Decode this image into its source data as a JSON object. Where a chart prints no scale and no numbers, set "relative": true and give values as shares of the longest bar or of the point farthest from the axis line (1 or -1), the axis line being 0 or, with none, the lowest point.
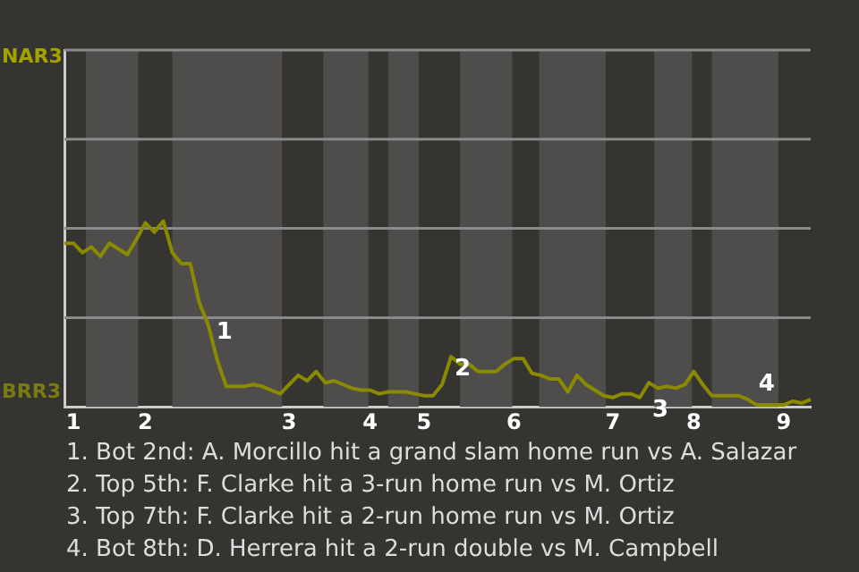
{
  "chart_data": {
    "type": "line",
    "relative": true,
    "categories": [
      null,
      "1",
      null,
      null,
      null,
      null,
      null,
      null,
      null,
      "2",
      null,
      null,
      null,
      null,
      null,
      null,
      null,
      null,
      null,
      null,
      null,
      null,
      null,
      null,
      null,
      "3",
      null,
      null,
      null,
      null,
      null,
      null,
      null,
      null,
      "4",
      null,
      null,
      null,
      null,
      null,
      "5",
      null,
      null,
      null,
      null,
      null,
      null,
      null,
      null,
      null,
      "6",
      null,
      null,
      null,
      null,
      null,
      null,
      null,
      null,
      null,
      null,
      "7",
      null,
      null,
      null,
      null,
      null,
      null,
      null,
      null,
      "8",
      null,
      null,
      null,
      null,
      null,
      null,
      null,
      null,
      null,
      "9",
      null,
      null,
      null
    ],
    "series": [
      {
        "color": "#8a8a00",
        "values": [
          0.88,
          0.88,
          0.83,
          0.86,
          0.81,
          0.88,
          0.85,
          0.82,
          0.9,
          0.99,
          0.94,
          1,
          0.83,
          0.77,
          0.77,
          0.56,
          0.44,
          0.25,
          0.11,
          0.11,
          0.11,
          0.12,
          0.11,
          0.09,
          0.07,
          0.12,
          0.17,
          0.14,
          0.19,
          0.13,
          0.14,
          0.12,
          0.1,
          0.09,
          0.09,
          0.07,
          0.08,
          0.08,
          0.08,
          0.07,
          0.06,
          0.06,
          0.12,
          0.27,
          0.23,
          0.23,
          0.19,
          0.19,
          0.19,
          0.23,
          0.26,
          0.26,
          0.18,
          0.17,
          0.15,
          0.15,
          0.08,
          0.17,
          0.12,
          0.09,
          0.06,
          0.05,
          0.07,
          0.07,
          0.05,
          0.13,
          0.1,
          0.11,
          0.1,
          0.12,
          0.19,
          0.12,
          0.06,
          0.06,
          0.06,
          0.06,
          0.04,
          0.01,
          0.01,
          0.01,
          0.01,
          0.03,
          0.02,
          0.04
        ]
      }
    ],
    "legend": false,
    "marker": "none",
    "line_style": "solid",
    "ref_lines": [
      {
        "axis": "y",
        "value": 0.48,
        "color": "#8a8a8a"
      },
      {
        "axis": "y",
        "value": 0.96,
        "color": "#8a8a8a"
      },
      {
        "axis": "y",
        "value": 1.44,
        "color": "#8a8a8a"
      }
    ],
    "annotations": [
      "NAR3",
      "BRR3",
      "1",
      "2",
      "3",
      "4",
      "1. Bot 2nd: A. Morcillo hit a grand slam home run vs A. Salazar",
      "2. Top 5th: F. Clarke hit a 3-run home run vs M. Ortiz",
      "3. Top 7th: F. Clarke hit a 2-run home run vs M. Ortiz",
      "4. Bot 8th: D. Herrera hit a 2-run double vs M. Campbell"
    ]
  }
}
